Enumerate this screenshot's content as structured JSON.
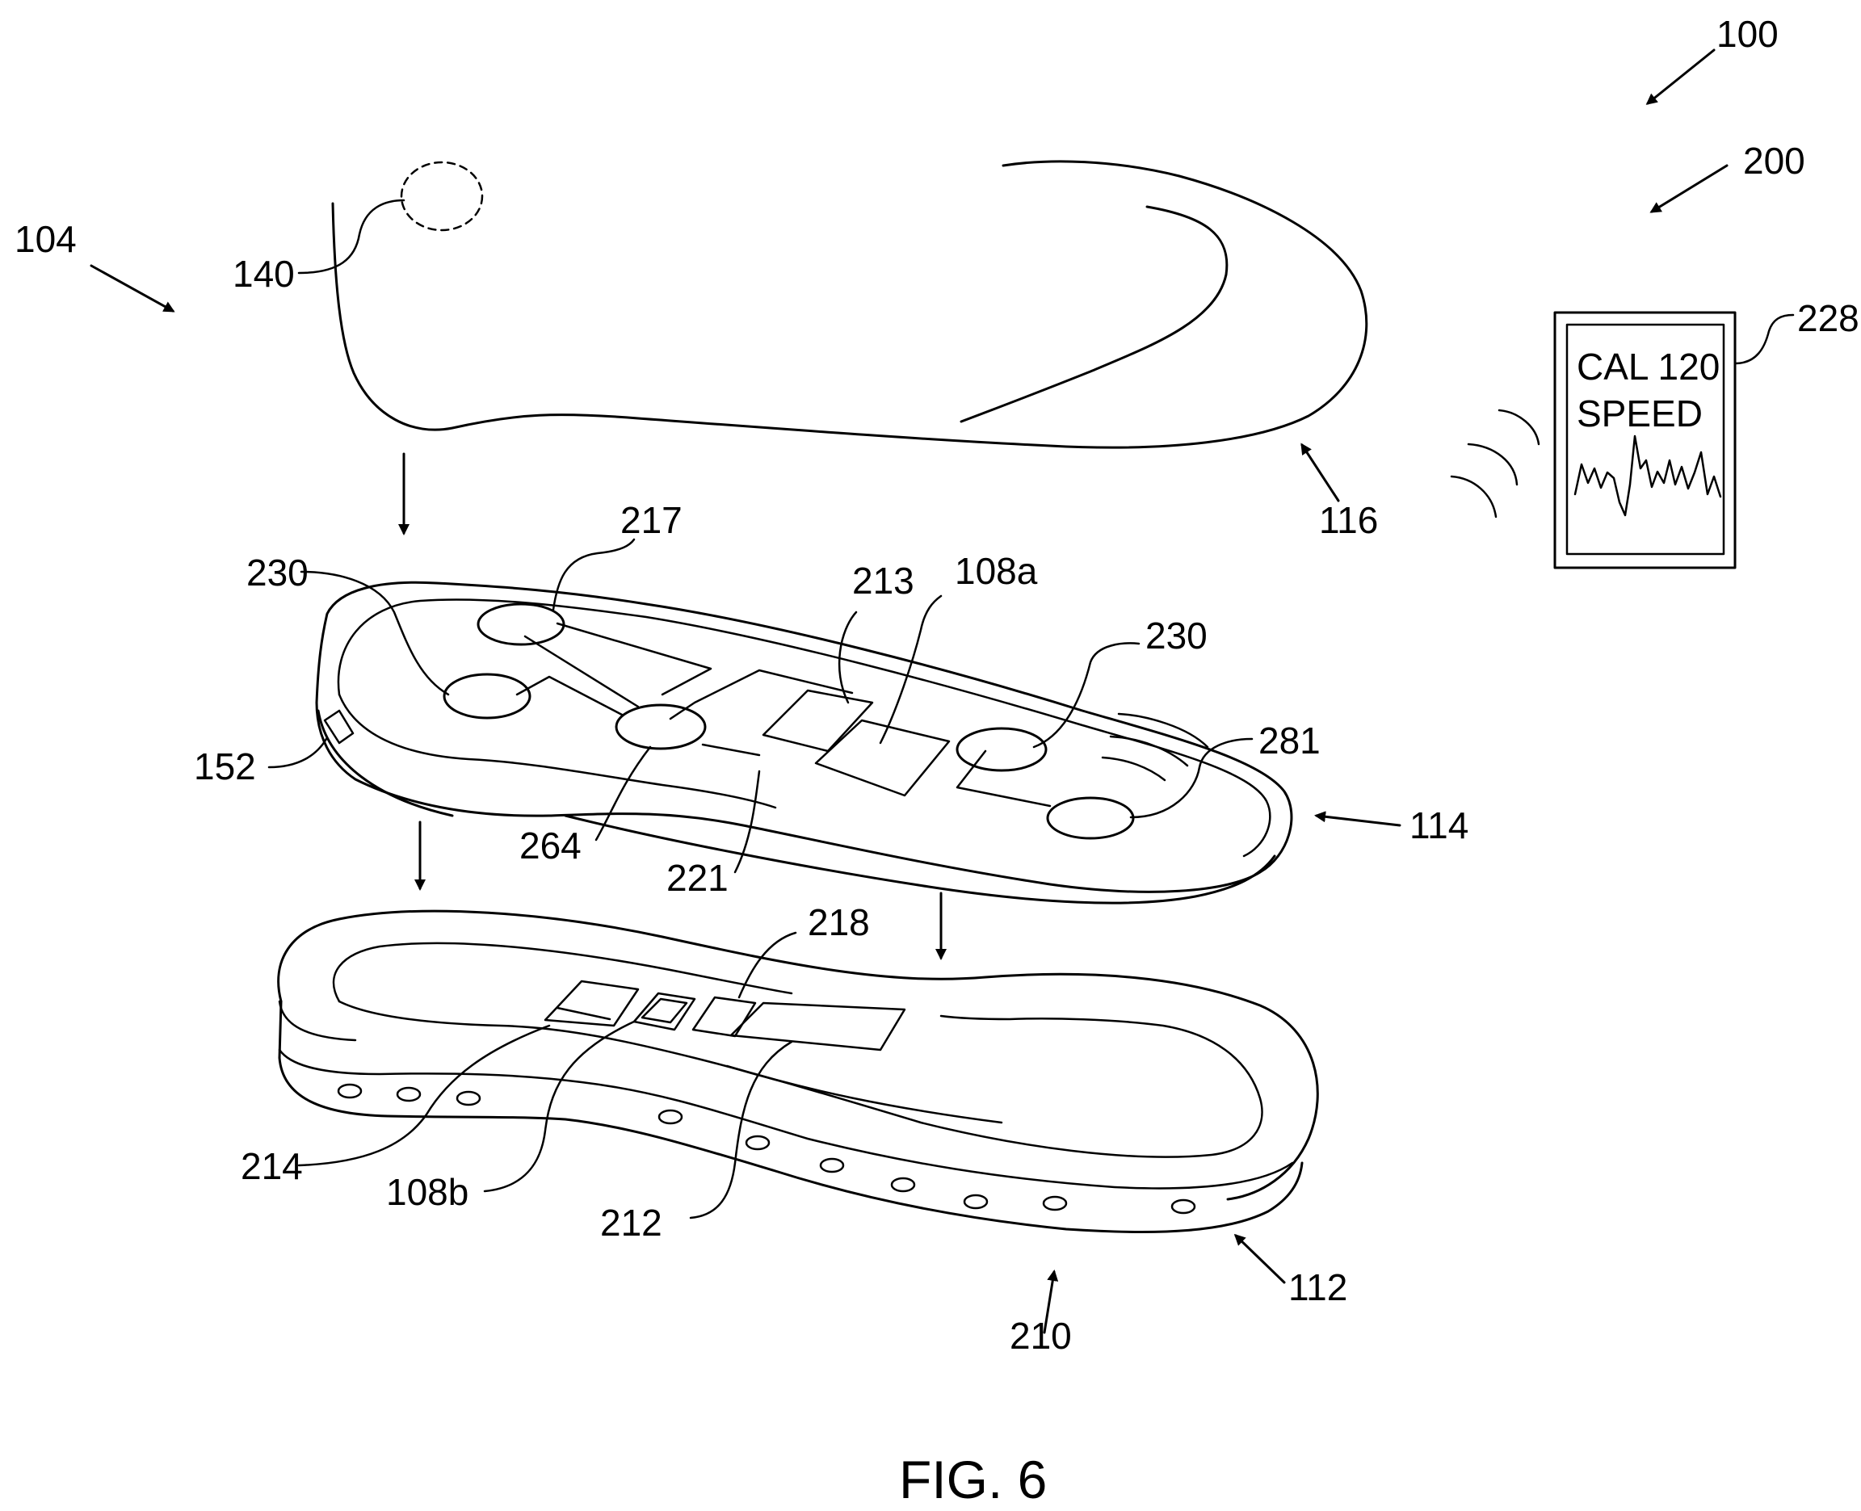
{
  "figure": {
    "caption": "FIG. 6"
  },
  "device": {
    "screen_line1": "CAL 120",
    "screen_line2": "SPEED"
  },
  "labels": {
    "r100": "100",
    "r200": "200",
    "r104": "104",
    "r140": "140",
    "r228": "228",
    "r116": "116",
    "r217": "217",
    "r230a": "230",
    "r213": "213",
    "r108a": "108a",
    "r230b": "230",
    "r281": "281",
    "r152": "152",
    "r264": "264",
    "r221": "221",
    "r114": "114",
    "r218": "218",
    "r214": "214",
    "r108b": "108b",
    "r212": "212",
    "r112": "112",
    "r210": "210"
  }
}
